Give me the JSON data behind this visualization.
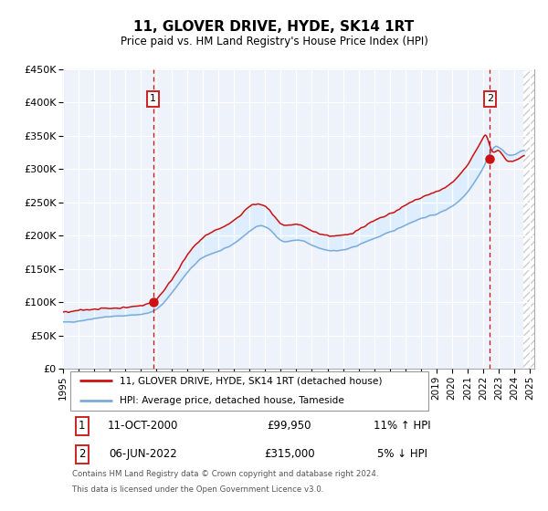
{
  "title": "11, GLOVER DRIVE, HYDE, SK14 1RT",
  "subtitle": "Price paid vs. HM Land Registry's House Price Index (HPI)",
  "ylim": [
    0,
    450000
  ],
  "xlim_start": 1995.0,
  "xlim_end": 2025.3,
  "yticks": [
    0,
    50000,
    100000,
    150000,
    200000,
    250000,
    300000,
    350000,
    400000,
    450000
  ],
  "ytick_labels": [
    "£0",
    "£50K",
    "£100K",
    "£150K",
    "£200K",
    "£250K",
    "£300K",
    "£350K",
    "£400K",
    "£450K"
  ],
  "xticks": [
    1995,
    1996,
    1997,
    1998,
    1999,
    2000,
    2001,
    2002,
    2003,
    2004,
    2005,
    2006,
    2007,
    2008,
    2009,
    2010,
    2011,
    2012,
    2013,
    2014,
    2015,
    2016,
    2017,
    2018,
    2019,
    2020,
    2021,
    2022,
    2023,
    2024,
    2025
  ],
  "marker1_x": 2000.79,
  "marker1_y": 99950,
  "marker2_x": 2022.44,
  "marker2_y": 315000,
  "marker1_label": "1",
  "marker2_label": "2",
  "marker1_date": "11-OCT-2000",
  "marker1_price": "£99,950",
  "marker1_hpi": "11% ↑ HPI",
  "marker2_date": "06-JUN-2022",
  "marker2_price": "£315,000",
  "marker2_hpi": "5% ↓ HPI",
  "line1_color": "#cc1111",
  "line2_color": "#7aabda",
  "fill_color": "#ddeeff",
  "background_color": "#eef2fa",
  "grid_color": "#ffffff",
  "hatch_color": "#cccccc",
  "legend1_label": "11, GLOVER DRIVE, HYDE, SK14 1RT (detached house)",
  "legend2_label": "HPI: Average price, detached house, Tameside",
  "footnote1": "Contains HM Land Registry data © Crown copyright and database right 2024.",
  "footnote2": "This data is licensed under the Open Government Licence v3.0.",
  "sale1_x": 2000.79,
  "sale1_y": 99950,
  "sale2_x": 2022.44,
  "sale2_y": 315000,
  "data_end_x": 2024.6,
  "hpi_key_points": [
    [
      1995.0,
      70000
    ],
    [
      1995.5,
      70500
    ],
    [
      1996.0,
      72000
    ],
    [
      1996.5,
      73500
    ],
    [
      1997.0,
      76000
    ],
    [
      1997.5,
      77500
    ],
    [
      1998.0,
      78500
    ],
    [
      1998.5,
      79200
    ],
    [
      1999.0,
      80000
    ],
    [
      1999.5,
      81000
    ],
    [
      2000.0,
      82000
    ],
    [
      2000.5,
      83500
    ],
    [
      2001.0,
      88000
    ],
    [
      2001.5,
      100000
    ],
    [
      2002.0,
      114000
    ],
    [
      2002.5,
      130000
    ],
    [
      2003.0,
      145000
    ],
    [
      2003.5,
      158000
    ],
    [
      2004.0,
      168000
    ],
    [
      2004.5,
      173000
    ],
    [
      2005.0,
      176000
    ],
    [
      2005.5,
      181000
    ],
    [
      2006.0,
      188000
    ],
    [
      2006.5,
      197000
    ],
    [
      2007.0,
      207000
    ],
    [
      2007.5,
      215000
    ],
    [
      2008.0,
      216000
    ],
    [
      2008.5,
      205000
    ],
    [
      2009.0,
      190000
    ],
    [
      2009.5,
      191000
    ],
    [
      2010.0,
      194000
    ],
    [
      2010.5,
      192000
    ],
    [
      2011.0,
      185000
    ],
    [
      2011.5,
      181000
    ],
    [
      2012.0,
      178000
    ],
    [
      2012.5,
      177000
    ],
    [
      2013.0,
      178000
    ],
    [
      2013.5,
      181000
    ],
    [
      2014.0,
      186000
    ],
    [
      2014.5,
      191000
    ],
    [
      2015.0,
      196000
    ],
    [
      2015.5,
      200000
    ],
    [
      2016.0,
      205000
    ],
    [
      2016.5,
      210000
    ],
    [
      2017.0,
      216000
    ],
    [
      2017.5,
      221000
    ],
    [
      2018.0,
      226000
    ],
    [
      2018.5,
      229000
    ],
    [
      2019.0,
      232000
    ],
    [
      2019.5,
      237000
    ],
    [
      2020.0,
      244000
    ],
    [
      2020.5,
      252000
    ],
    [
      2021.0,
      265000
    ],
    [
      2021.5,
      282000
    ],
    [
      2022.0,
      300000
    ],
    [
      2022.3,
      315000
    ],
    [
      2022.5,
      328000
    ],
    [
      2022.8,
      338000
    ],
    [
      2023.0,
      335000
    ],
    [
      2023.3,
      328000
    ],
    [
      2023.6,
      318000
    ],
    [
      2024.0,
      320000
    ],
    [
      2024.3,
      325000
    ],
    [
      2024.6,
      330000
    ]
  ],
  "red_key_points": [
    [
      1995.0,
      85000
    ],
    [
      1995.5,
      85500
    ],
    [
      1996.0,
      87500
    ],
    [
      1996.5,
      88800
    ],
    [
      1997.0,
      90000
    ],
    [
      1997.5,
      90500
    ],
    [
      1998.0,
      91000
    ],
    [
      1998.5,
      91500
    ],
    [
      1999.0,
      92000
    ],
    [
      1999.5,
      93500
    ],
    [
      2000.0,
      95000
    ],
    [
      2000.79,
      99950
    ],
    [
      2001.0,
      104000
    ],
    [
      2001.5,
      118000
    ],
    [
      2002.0,
      134000
    ],
    [
      2002.5,
      153000
    ],
    [
      2003.0,
      171000
    ],
    [
      2003.5,
      186000
    ],
    [
      2004.0,
      197000
    ],
    [
      2004.5,
      205000
    ],
    [
      2005.0,
      210000
    ],
    [
      2005.5,
      215000
    ],
    [
      2006.0,
      222000
    ],
    [
      2006.5,
      233000
    ],
    [
      2007.0,
      245000
    ],
    [
      2007.5,
      248000
    ],
    [
      2008.0,
      245000
    ],
    [
      2008.5,
      232000
    ],
    [
      2009.0,
      215000
    ],
    [
      2009.5,
      214000
    ],
    [
      2010.0,
      218000
    ],
    [
      2010.5,
      213000
    ],
    [
      2011.0,
      207000
    ],
    [
      2011.5,
      203000
    ],
    [
      2012.0,
      200000
    ],
    [
      2012.5,
      199000
    ],
    [
      2013.0,
      200000
    ],
    [
      2013.5,
      203000
    ],
    [
      2014.0,
      209000
    ],
    [
      2014.5,
      216000
    ],
    [
      2015.0,
      222000
    ],
    [
      2015.5,
      227000
    ],
    [
      2016.0,
      232000
    ],
    [
      2016.5,
      238000
    ],
    [
      2017.0,
      245000
    ],
    [
      2017.5,
      252000
    ],
    [
      2018.0,
      257000
    ],
    [
      2018.5,
      262000
    ],
    [
      2019.0,
      265000
    ],
    [
      2019.5,
      271000
    ],
    [
      2020.0,
      279000
    ],
    [
      2020.5,
      290000
    ],
    [
      2021.0,
      305000
    ],
    [
      2021.5,
      325000
    ],
    [
      2022.0,
      345000
    ],
    [
      2022.3,
      370000
    ],
    [
      2022.44,
      315000
    ],
    [
      2022.6,
      320000
    ],
    [
      2022.8,
      330000
    ],
    [
      2023.0,
      328000
    ],
    [
      2023.3,
      320000
    ],
    [
      2023.6,
      310000
    ],
    [
      2024.0,
      312000
    ],
    [
      2024.3,
      316000
    ],
    [
      2024.6,
      320000
    ]
  ]
}
